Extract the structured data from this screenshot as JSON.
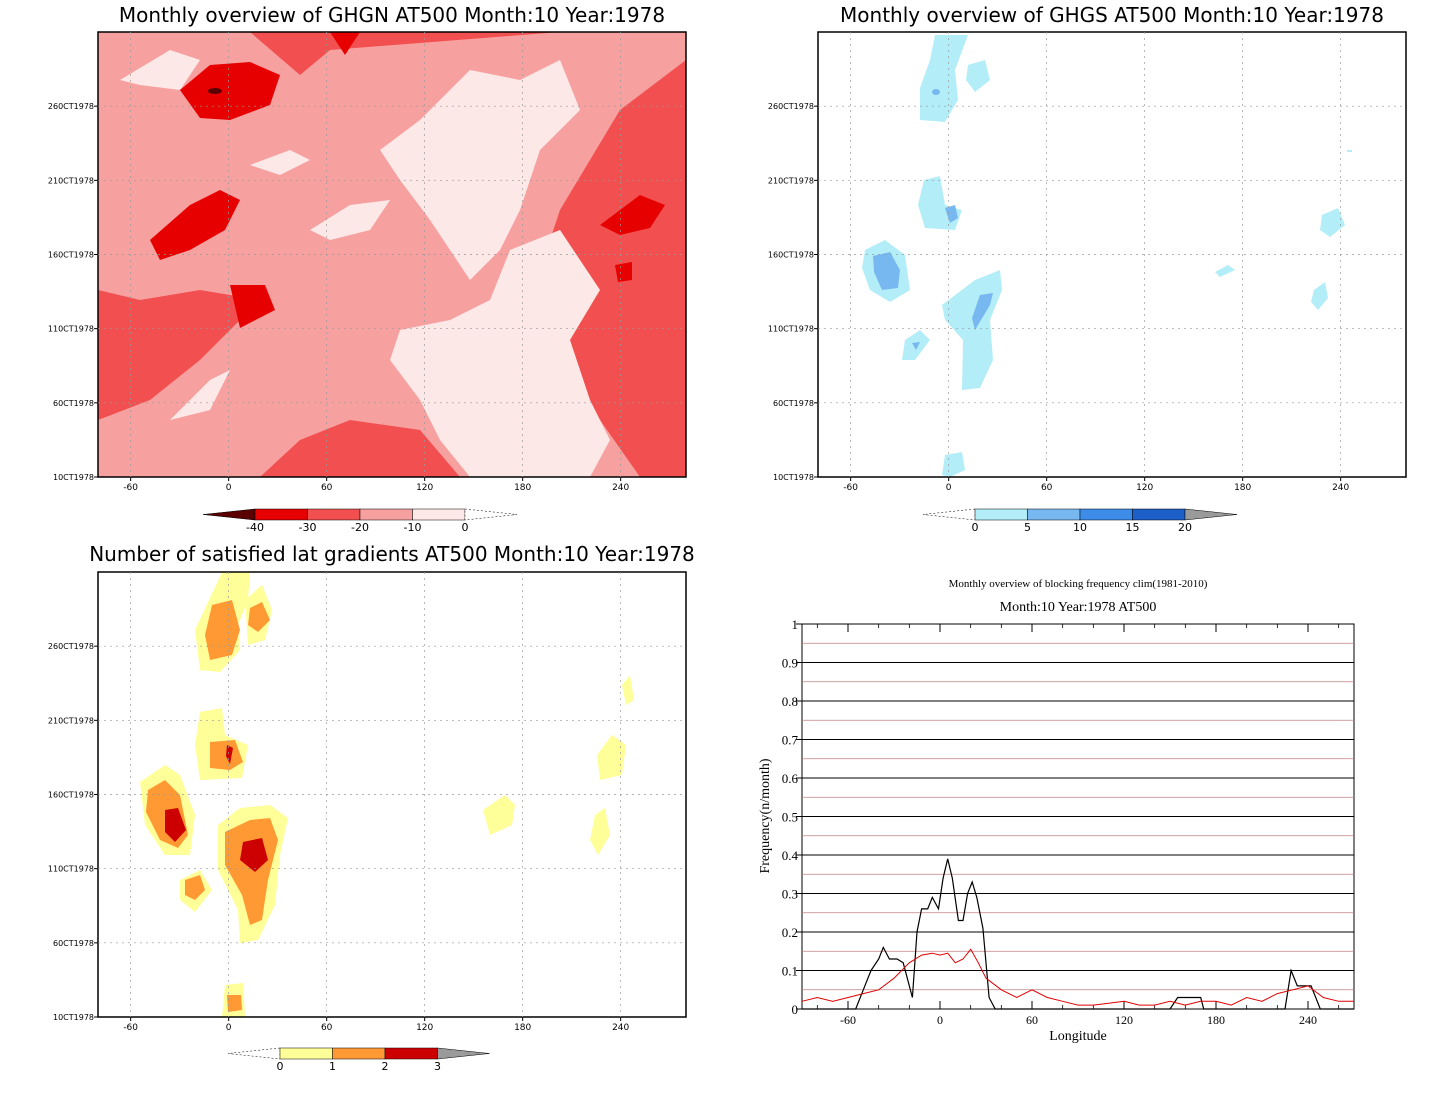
{
  "panels": {
    "ghgn": {
      "title": "Monthly overview of GHGN AT500 Month:10 Year:1978",
      "y_ticks": [
        "10CT1978",
        "60CT1978",
        "110CT1978",
        "160CT1978",
        "210CT1978",
        "260CT1978"
      ],
      "x_ticks": [
        "-60",
        "0",
        "60",
        "120",
        "180",
        "240"
      ],
      "colorbar": {
        "labels": [
          "-40",
          "-30",
          "-20",
          "-10",
          "0"
        ],
        "colors": [
          "#5a0000",
          "#e60000",
          "#f25050",
          "#f7a0a0",
          "#fde8e8"
        ]
      }
    },
    "ghgs": {
      "title": "Monthly overview of GHGS AT500 Month:10 Year:1978",
      "y_ticks": [
        "10CT1978",
        "60CT1978",
        "110CT1978",
        "160CT1978",
        "210CT1978",
        "260CT1978"
      ],
      "x_ticks": [
        "-60",
        "0",
        "60",
        "120",
        "180",
        "240"
      ],
      "colorbar": {
        "labels": [
          "0",
          "5",
          "10",
          "15",
          "20"
        ],
        "colors": [
          "#b3eef8",
          "#78b8f0",
          "#3c8ce8",
          "#1c5fc8",
          "#9a9a9a"
        ]
      }
    },
    "gradients": {
      "title": "Number of satisfied lat gradients AT500 Month:10 Year:1978",
      "y_ticks": [
        "10CT1978",
        "60CT1978",
        "110CT1978",
        "160CT1978",
        "210CT1978",
        "260CT1978"
      ],
      "x_ticks": [
        "-60",
        "0",
        "60",
        "120",
        "180",
        "240"
      ],
      "colorbar": {
        "labels": [
          "0",
          "1",
          "2",
          "3"
        ],
        "colors": [
          "#ffff99",
          "#ff9933",
          "#cc0000",
          "#9a9a9a"
        ]
      }
    }
  },
  "chart_data": [
    {
      "type": "heatmap",
      "title": "Monthly overview of GHGN AT500 Month:10 Year:1978",
      "xlabel": "",
      "ylabel": "",
      "xlim": [
        -80,
        280
      ],
      "color_levels": [
        -40,
        -30,
        -20,
        -10,
        0
      ]
    },
    {
      "type": "heatmap",
      "title": "Monthly overview of GHGS AT500 Month:10 Year:1978",
      "xlabel": "",
      "ylabel": "",
      "xlim": [
        -80,
        280
      ],
      "color_levels": [
        0,
        5,
        10,
        15,
        20
      ]
    },
    {
      "type": "heatmap",
      "title": "Number of satisfied lat gradients AT500 Month:10 Year:1978",
      "xlabel": "",
      "ylabel": "",
      "xlim": [
        -80,
        280
      ],
      "color_levels": [
        0,
        1,
        2,
        3
      ]
    },
    {
      "type": "line",
      "title": "Monthly overview of blocking frequency clim(1981-2010)",
      "subtitle": "Month:10 Year:1978  AT500",
      "xlabel": "Longitude",
      "ylabel": "Frequency(n/month)",
      "xlim": [
        -90,
        270
      ],
      "ylim": [
        0,
        1
      ],
      "x_ticks": [
        -60,
        0,
        60,
        120,
        180,
        240
      ],
      "y_ticks": [
        0,
        0.1,
        0.2,
        0.3,
        0.4,
        0.5,
        0.6,
        0.7,
        0.8,
        0.9,
        1
      ],
      "series": [
        {
          "name": "Month:10 Year:1978",
          "color": "#000000",
          "x": [
            -90,
            -55,
            -50,
            -45,
            -40,
            -37,
            -33,
            -28,
            -24,
            -18,
            -15,
            -12,
            -8,
            -5,
            -1,
            2,
            5,
            8,
            12,
            15,
            18,
            21,
            24,
            28,
            32,
            36,
            150,
            155,
            170,
            172,
            176,
            225,
            229,
            233,
            238,
            242,
            248,
            270
          ],
          "y": [
            0,
            0,
            0.05,
            0.1,
            0.13,
            0.16,
            0.13,
            0.13,
            0.12,
            0.03,
            0.2,
            0.26,
            0.26,
            0.29,
            0.26,
            0.34,
            0.39,
            0.34,
            0.23,
            0.23,
            0.3,
            0.33,
            0.29,
            0.21,
            0.03,
            0,
            0,
            0.03,
            0.03,
            0,
            0,
            0,
            0.1,
            0.06,
            0.06,
            0.06,
            0,
            0
          ]
        },
        {
          "name": "clim(1981-2010)",
          "color": "#e00000",
          "x": [
            -90,
            -80,
            -70,
            -60,
            -50,
            -40,
            -30,
            -20,
            -12,
            -5,
            0,
            5,
            10,
            15,
            20,
            25,
            30,
            40,
            50,
            60,
            70,
            80,
            90,
            100,
            110,
            120,
            130,
            140,
            150,
            160,
            170,
            180,
            190,
            200,
            210,
            220,
            230,
            240,
            250,
            260,
            270
          ],
          "y": [
            0.02,
            0.03,
            0.02,
            0.03,
            0.04,
            0.05,
            0.08,
            0.12,
            0.14,
            0.145,
            0.14,
            0.145,
            0.12,
            0.13,
            0.155,
            0.12,
            0.08,
            0.05,
            0.03,
            0.05,
            0.03,
            0.02,
            0.01,
            0.01,
            0.015,
            0.02,
            0.01,
            0.01,
            0.02,
            0.01,
            0.02,
            0.02,
            0.01,
            0.03,
            0.02,
            0.04,
            0.05,
            0.06,
            0.03,
            0.02,
            0.02
          ]
        }
      ]
    }
  ]
}
